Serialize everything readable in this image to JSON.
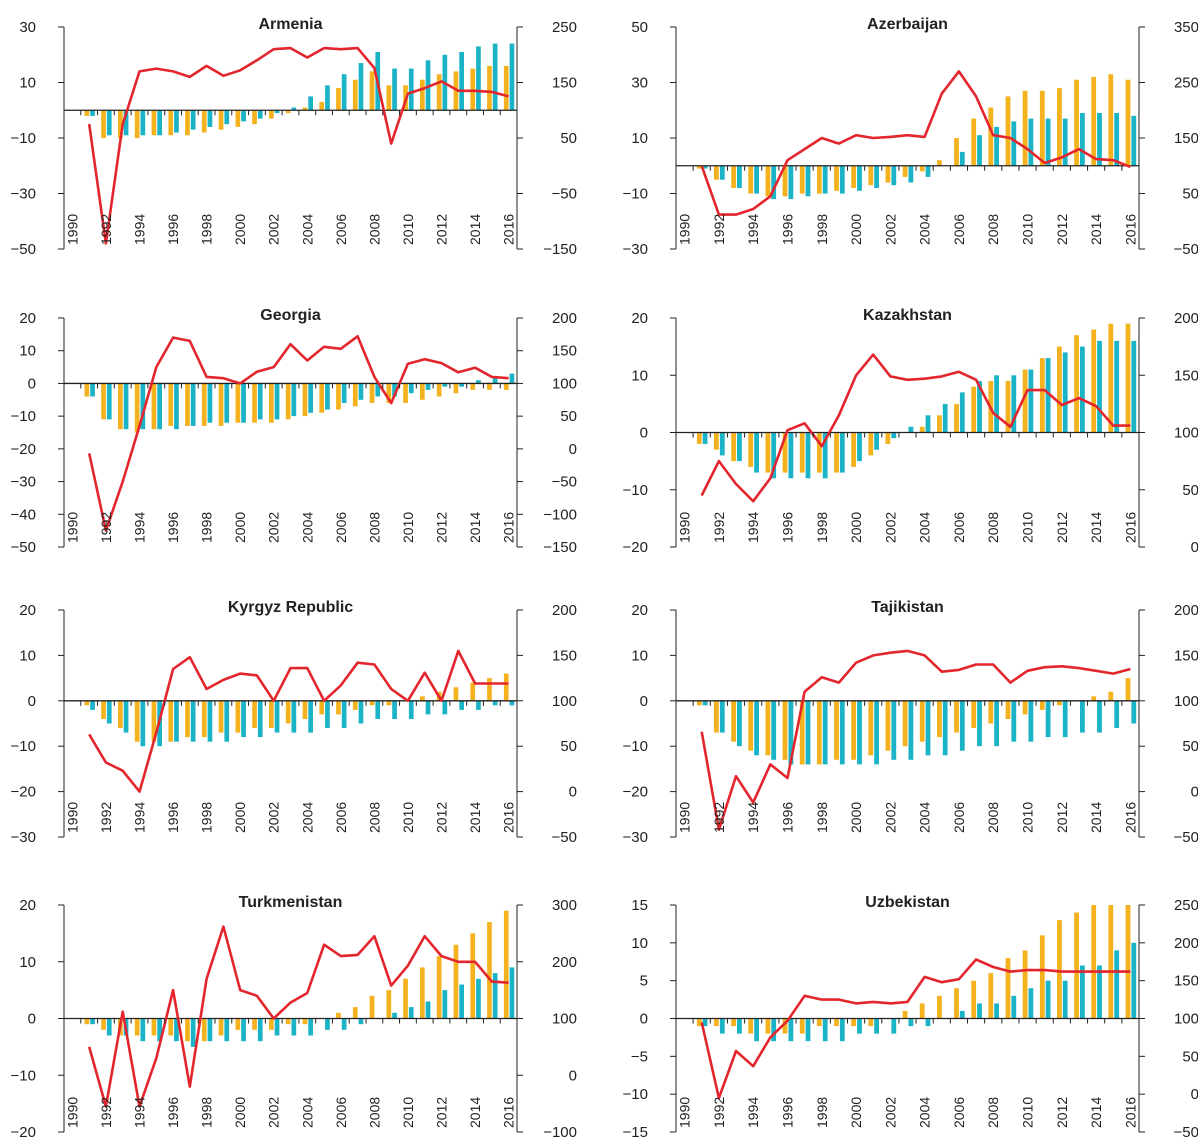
{
  "colors": {
    "bar_a": "#F5B21F",
    "bar_b": "#1BB3C6",
    "line": "#E3262D",
    "axis": "#222222"
  },
  "years_shown": [
    "1990",
    "1992",
    "1994",
    "1996",
    "1998",
    "2000",
    "2002",
    "2004",
    "2006",
    "2008",
    "2010",
    "2012",
    "2014",
    "2016"
  ],
  "chart_data": [
    {
      "type": "bar",
      "title": "Armenia",
      "x": [
        1990,
        1991,
        1992,
        1993,
        1994,
        1995,
        1996,
        1997,
        1998,
        1999,
        2000,
        2001,
        2002,
        2003,
        2004,
        2005,
        2006,
        2007,
        2008,
        2009,
        2010,
        2011,
        2012,
        2013,
        2014,
        2015,
        2016
      ],
      "ylim_left": [
        -50,
        30
      ],
      "yticks_left": [
        30,
        10,
        -10,
        -30,
        -50
      ],
      "ylim_right": [
        -150,
        250
      ],
      "yticks_right": [
        250,
        150,
        50,
        -50,
        -150
      ],
      "series": [
        {
          "axis": "left",
          "kind": "bar",
          "values": [
            0,
            -2,
            -10,
            -10,
            -10,
            -9,
            -9,
            -9,
            -8,
            -7,
            -6,
            -5,
            -3,
            -1,
            1,
            3,
            8,
            11,
            14,
            9,
            9,
            11,
            13,
            14,
            15,
            16,
            16
          ]
        },
        {
          "axis": "left",
          "kind": "bar",
          "values": [
            0,
            -2,
            -9,
            -9,
            -9,
            -9,
            -8,
            -7,
            -6,
            -5,
            -4,
            -3,
            -1,
            1,
            5,
            9,
            13,
            17,
            21,
            15,
            15,
            18,
            20,
            21,
            23,
            24,
            24
          ]
        },
        {
          "axis": "right",
          "kind": "line",
          "values": [
            null,
            75,
            -140,
            75,
            170,
            175,
            170,
            160,
            180,
            162,
            172,
            190,
            210,
            212,
            195,
            212,
            210,
            212,
            176,
            40,
            130,
            140,
            152,
            135,
            135,
            133,
            125
          ]
        }
      ]
    },
    {
      "type": "bar",
      "title": "Azerbaijan",
      "x": [
        1990,
        1991,
        1992,
        1993,
        1994,
        1995,
        1996,
        1997,
        1998,
        1999,
        2000,
        2001,
        2002,
        2003,
        2004,
        2005,
        2006,
        2007,
        2008,
        2009,
        2010,
        2011,
        2012,
        2013,
        2014,
        2015,
        2016
      ],
      "ylim_left": [
        -30,
        50
      ],
      "yticks_left": [
        50,
        30,
        10,
        -10,
        -30
      ],
      "ylim_right": [
        -50,
        350
      ],
      "yticks_right": [
        350,
        250,
        150,
        50,
        -50
      ],
      "series": [
        {
          "axis": "left",
          "kind": "bar",
          "values": [
            0,
            -1,
            -5,
            -8,
            -10,
            -11,
            -11,
            -10,
            -10,
            -9,
            -8,
            -7,
            -6,
            -4,
            -2,
            2,
            10,
            17,
            21,
            25,
            27,
            27,
            28,
            31,
            32,
            33,
            31
          ]
        },
        {
          "axis": "left",
          "kind": "bar",
          "values": [
            0,
            -1,
            -5,
            -8,
            -10,
            -12,
            -12,
            -11,
            -10,
            -10,
            -9,
            -8,
            -7,
            -6,
            -4,
            0,
            5,
            11,
            14,
            16,
            17,
            17,
            17,
            19,
            19,
            19,
            18
          ]
        },
        {
          "axis": "right",
          "kind": "line",
          "values": [
            null,
            100,
            12,
            12,
            22,
            45,
            110,
            130,
            150,
            140,
            155,
            150,
            152,
            155,
            152,
            230,
            270,
            225,
            155,
            150,
            130,
            105,
            115,
            130,
            112,
            110,
            98
          ]
        }
      ]
    },
    {
      "type": "bar",
      "title": "Georgia",
      "x": [
        1990,
        1991,
        1992,
        1993,
        1994,
        1995,
        1996,
        1997,
        1998,
        1999,
        2000,
        2001,
        2002,
        2003,
        2004,
        2005,
        2006,
        2007,
        2008,
        2009,
        2010,
        2011,
        2012,
        2013,
        2014,
        2015,
        2016
      ],
      "ylim_left": [
        -50,
        20
      ],
      "yticks_left": [
        20,
        10,
        0,
        -10,
        -20,
        -30,
        -40,
        -50
      ],
      "ylim_right": [
        -150,
        200
      ],
      "yticks_right": [
        200,
        150,
        100,
        50,
        0,
        -50,
        -100,
        -150
      ],
      "series": [
        {
          "axis": "left",
          "kind": "bar",
          "values": [
            0,
            -4,
            -11,
            -14,
            -15,
            -14,
            -13,
            -13,
            -13,
            -13,
            -12,
            -12,
            -12,
            -11,
            -10,
            -9,
            -8,
            -7,
            -6,
            -6,
            -6,
            -5,
            -4,
            -3,
            -2,
            -2,
            -2
          ]
        },
        {
          "axis": "left",
          "kind": "bar",
          "values": [
            0,
            -4,
            -11,
            -14,
            -14,
            -14,
            -14,
            -13,
            -12,
            -12,
            -12,
            -11,
            -11,
            -10,
            -9,
            -8,
            -6,
            -5,
            -4,
            -4,
            -3,
            -2,
            -1,
            -1,
            1,
            2,
            3
          ]
        },
        {
          "axis": "right",
          "kind": "line",
          "values": [
            null,
            -7,
            -125,
            -50,
            35,
            125,
            170,
            165,
            110,
            108,
            100,
            118,
            125,
            160,
            135,
            156,
            153,
            172,
            110,
            70,
            130,
            137,
            131,
            117,
            124,
            110,
            108
          ]
        }
      ]
    },
    {
      "type": "bar",
      "title": "Kazakhstan",
      "x": [
        1990,
        1991,
        1992,
        1993,
        1994,
        1995,
        1996,
        1997,
        1998,
        1999,
        2000,
        2001,
        2002,
        2003,
        2004,
        2005,
        2006,
        2007,
        2008,
        2009,
        2010,
        2011,
        2012,
        2013,
        2014,
        2015,
        2016
      ],
      "ylim_left": [
        -20,
        20
      ],
      "yticks_left": [
        20,
        10,
        0,
        -10,
        -20
      ],
      "ylim_right": [
        0,
        200
      ],
      "yticks_right": [
        200,
        150,
        100,
        50,
        0
      ],
      "series": [
        {
          "axis": "left",
          "kind": "bar",
          "values": [
            0,
            -2,
            -3,
            -5,
            -6,
            -7,
            -7,
            -7,
            -7,
            -7,
            -6,
            -4,
            -2,
            0,
            1,
            3,
            5,
            8,
            9,
            9,
            11,
            13,
            15,
            17,
            18,
            19,
            19
          ]
        },
        {
          "axis": "left",
          "kind": "bar",
          "values": [
            0,
            -2,
            -4,
            -5,
            -7,
            -8,
            -8,
            -8,
            -8,
            -7,
            -5,
            -3,
            -1,
            1,
            3,
            5,
            7,
            9,
            10,
            10,
            11,
            13,
            14,
            15,
            16,
            16,
            16
          ]
        },
        {
          "axis": "right",
          "kind": "line",
          "values": [
            null,
            45,
            75,
            55,
            40,
            60,
            102,
            108,
            88,
            115,
            150,
            168,
            149,
            146,
            147,
            149,
            153,
            146,
            117,
            105,
            137,
            137,
            124,
            130,
            123,
            106,
            106
          ]
        }
      ]
    },
    {
      "type": "bar",
      "title": "Kyrgyz Republic",
      "x": [
        1990,
        1991,
        1992,
        1993,
        1994,
        1995,
        1996,
        1997,
        1998,
        1999,
        2000,
        2001,
        2002,
        2003,
        2004,
        2005,
        2006,
        2007,
        2008,
        2009,
        2010,
        2011,
        2012,
        2013,
        2014,
        2015,
        2016
      ],
      "ylim_left": [
        -30,
        20
      ],
      "yticks_left": [
        20,
        10,
        0,
        -10,
        -20,
        -30
      ],
      "ylim_right": [
        -50,
        200
      ],
      "yticks_right": [
        200,
        150,
        100,
        50,
        0,
        -50
      ],
      "series": [
        {
          "axis": "left",
          "kind": "bar",
          "values": [
            0,
            -1,
            -4,
            -6,
            -9,
            -9,
            -9,
            -8,
            -8,
            -7,
            -7,
            -6,
            -6,
            -5,
            -4,
            -3,
            -3,
            -2,
            -1,
            -1,
            0,
            1,
            2,
            3,
            4,
            5,
            6
          ]
        },
        {
          "axis": "left",
          "kind": "bar",
          "values": [
            0,
            -2,
            -5,
            -7,
            -10,
            -10,
            -9,
            -9,
            -9,
            -9,
            -8,
            -8,
            -7,
            -7,
            -7,
            -6,
            -6,
            -5,
            -4,
            -4,
            -4,
            -3,
            -3,
            -2,
            -2,
            -1,
            -1
          ]
        },
        {
          "axis": "right",
          "kind": "line",
          "values": [
            null,
            63,
            32,
            23,
            0,
            65,
            135,
            148,
            113,
            123,
            130,
            128,
            100,
            136,
            136,
            100,
            117,
            142,
            140,
            113,
            100,
            131,
            100,
            155,
            119,
            119,
            119
          ]
        }
      ]
    },
    {
      "type": "bar",
      "title": "Tajikistan",
      "x": [
        1990,
        1991,
        1992,
        1993,
        1994,
        1995,
        1996,
        1997,
        1998,
        1999,
        2000,
        2001,
        2002,
        2003,
        2004,
        2005,
        2006,
        2007,
        2008,
        2009,
        2010,
        2011,
        2012,
        2013,
        2014,
        2015,
        2016
      ],
      "ylim_left": [
        -30,
        20
      ],
      "yticks_left": [
        20,
        10,
        0,
        -10,
        -20,
        -30
      ],
      "ylim_right": [
        -50,
        200
      ],
      "yticks_right": [
        200,
        150,
        100,
        50,
        0,
        -50
      ],
      "series": [
        {
          "axis": "left",
          "kind": "bar",
          "values": [
            0,
            -1,
            -7,
            -9,
            -11,
            -12,
            -13,
            -14,
            -14,
            -13,
            -13,
            -12,
            -11,
            -10,
            -9,
            -8,
            -7,
            -6,
            -5,
            -4,
            -3,
            -2,
            -1,
            0,
            1,
            2,
            5
          ]
        },
        {
          "axis": "left",
          "kind": "bar",
          "values": [
            0,
            -1,
            -7,
            -10,
            -12,
            -13,
            -14,
            -14,
            -14,
            -14,
            -14,
            -14,
            -13,
            -13,
            -12,
            -12,
            -11,
            -10,
            -10,
            -9,
            -9,
            -8,
            -8,
            -7,
            -7,
            -6,
            -5
          ]
        },
        {
          "axis": "right",
          "kind": "line",
          "values": [
            null,
            66,
            -42,
            17,
            -12,
            30,
            15,
            110,
            126,
            120,
            142,
            150,
            153,
            155,
            150,
            132,
            134,
            140,
            140,
            120,
            133,
            137,
            138,
            136,
            133,
            130,
            135
          ]
        }
      ]
    },
    {
      "type": "bar",
      "title": "Turkmenistan",
      "x": [
        1990,
        1991,
        1992,
        1993,
        1994,
        1995,
        1996,
        1997,
        1998,
        1999,
        2000,
        2001,
        2002,
        2003,
        2004,
        2005,
        2006,
        2007,
        2008,
        2009,
        2010,
        2011,
        2012,
        2013,
        2014,
        2015,
        2016
      ],
      "ylim_left": [
        -20,
        20
      ],
      "yticks_left": [
        20,
        10,
        0,
        -10,
        -20
      ],
      "ylim_right": [
        -100,
        300
      ],
      "yticks_right": [
        300,
        200,
        100,
        0,
        -100
      ],
      "series": [
        {
          "axis": "left",
          "kind": "bar",
          "values": [
            0,
            -1,
            -2,
            -3,
            -3,
            -3,
            -3,
            -4,
            -4,
            -3,
            -2,
            -2,
            -2,
            -1,
            -1,
            0,
            1,
            2,
            4,
            5,
            7,
            9,
            11,
            13,
            15,
            17,
            19
          ]
        },
        {
          "axis": "left",
          "kind": "bar",
          "values": [
            0,
            -1,
            -3,
            -3,
            -4,
            -4,
            -4,
            -5,
            -4,
            -4,
            -4,
            -4,
            -3,
            -3,
            -3,
            -2,
            -2,
            -1,
            0,
            1,
            2,
            3,
            5,
            6,
            7,
            8,
            9
          ]
        },
        {
          "axis": "right",
          "kind": "line",
          "values": [
            null,
            50,
            -55,
            112,
            -55,
            30,
            150,
            -20,
            170,
            262,
            150,
            140,
            100,
            128,
            145,
            230,
            210,
            212,
            245,
            158,
            193,
            245,
            210,
            200,
            200,
            165,
            163
          ]
        }
      ]
    },
    {
      "type": "bar",
      "title": "Uzbekistan",
      "x": [
        1990,
        1991,
        1992,
        1993,
        1994,
        1995,
        1996,
        1997,
        1998,
        1999,
        2000,
        2001,
        2002,
        2003,
        2004,
        2005,
        2006,
        2007,
        2008,
        2009,
        2010,
        2011,
        2012,
        2013,
        2014,
        2015,
        2016
      ],
      "ylim_left": [
        -15,
        15
      ],
      "yticks_left": [
        15,
        10,
        5,
        0,
        -5,
        -10,
        -15
      ],
      "ylim_right": [
        -50,
        250
      ],
      "yticks_right": [
        250,
        200,
        150,
        100,
        50,
        0,
        -50
      ],
      "series": [
        {
          "axis": "left",
          "kind": "bar",
          "values": [
            0,
            -1,
            -1,
            -1,
            -2,
            -2,
            -2,
            -2,
            -1,
            -1,
            -1,
            -1,
            0,
            1,
            2,
            3,
            4,
            5,
            6,
            8,
            9,
            11,
            13,
            14,
            15,
            15,
            15
          ]
        },
        {
          "axis": "left",
          "kind": "bar",
          "values": [
            0,
            -1,
            -2,
            -2,
            -3,
            -3,
            -3,
            -3,
            -3,
            -3,
            -2,
            -2,
            -2,
            -1,
            -1,
            0,
            1,
            2,
            2,
            3,
            4,
            5,
            5,
            7,
            7,
            9,
            10
          ]
        },
        {
          "axis": "right",
          "kind": "line",
          "values": [
            null,
            95,
            -5,
            57,
            37,
            75,
            97,
            130,
            125,
            125,
            120,
            122,
            120,
            122,
            155,
            148,
            152,
            178,
            168,
            162,
            164,
            164,
            162,
            162,
            162,
            162,
            162
          ]
        }
      ]
    }
  ]
}
